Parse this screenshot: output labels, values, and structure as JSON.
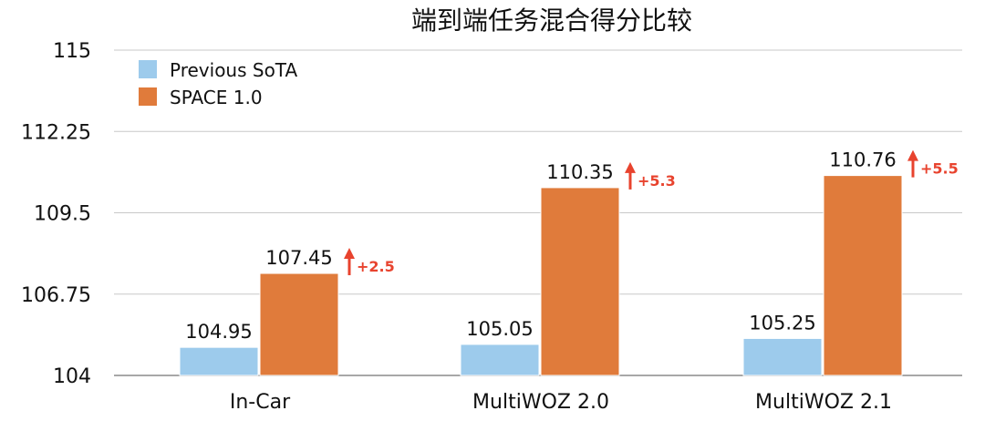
{
  "chart_data": {
    "type": "bar",
    "title": "端到端任务混合得分比较",
    "categories": [
      "In-Car",
      "MultiWOZ 2.0",
      "MultiWOZ 2.1"
    ],
    "series": [
      {
        "name": "Previous SoTA",
        "values": [
          104.95,
          105.05,
          105.25
        ],
        "labels": [
          "104.95",
          "105.05",
          "105.25"
        ],
        "color": "#9DCBEC"
      },
      {
        "name": "SPACE 1.0",
        "values": [
          107.45,
          110.35,
          110.76
        ],
        "labels": [
          "107.45",
          "110.35",
          "110.76"
        ],
        "color": "#E07B3B"
      }
    ],
    "deltas": [
      "+2.5",
      "+5.3",
      "+5.5"
    ],
    "delta_color": "#E8432E",
    "ylim": [
      104,
      115
    ],
    "yticks": [
      "104",
      "106.75",
      "109.5",
      "112.25",
      "115"
    ],
    "grid": true,
    "legend": "top-left"
  }
}
